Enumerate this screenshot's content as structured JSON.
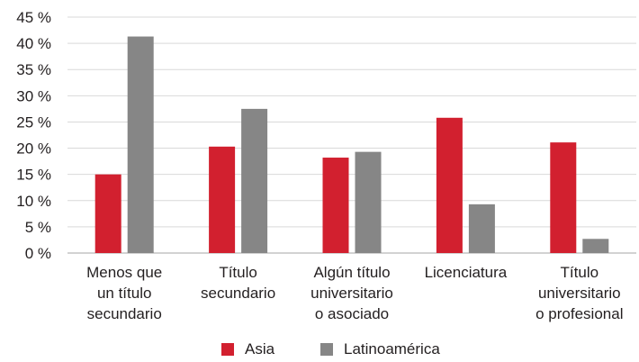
{
  "chart_data": {
    "type": "bar",
    "categories": [
      [
        "Menos que",
        "un título",
        "secundario"
      ],
      [
        "Título",
        "secundario"
      ],
      [
        "Algún título",
        "universitario",
        "o asociado"
      ],
      [
        "Licenciatura"
      ],
      [
        "Título",
        "universitario",
        "o profesional"
      ]
    ],
    "series": [
      {
        "name": "Asia",
        "color": "#d2202f",
        "values": [
          15,
          20.3,
          18.2,
          25.8,
          21.1
        ]
      },
      {
        "name": "Latinoamérica",
        "color": "#868686",
        "values": [
          41.3,
          27.5,
          19.3,
          9.3,
          2.7
        ]
      }
    ],
    "ylim": [
      0,
      45
    ],
    "yticks": [
      "0 %",
      "5 %",
      "10 %",
      "15 %",
      "20 %",
      "25 %",
      "30 %",
      "35 %",
      "40 %",
      "45 %"
    ],
    "grid": true,
    "legend": "bottom"
  }
}
